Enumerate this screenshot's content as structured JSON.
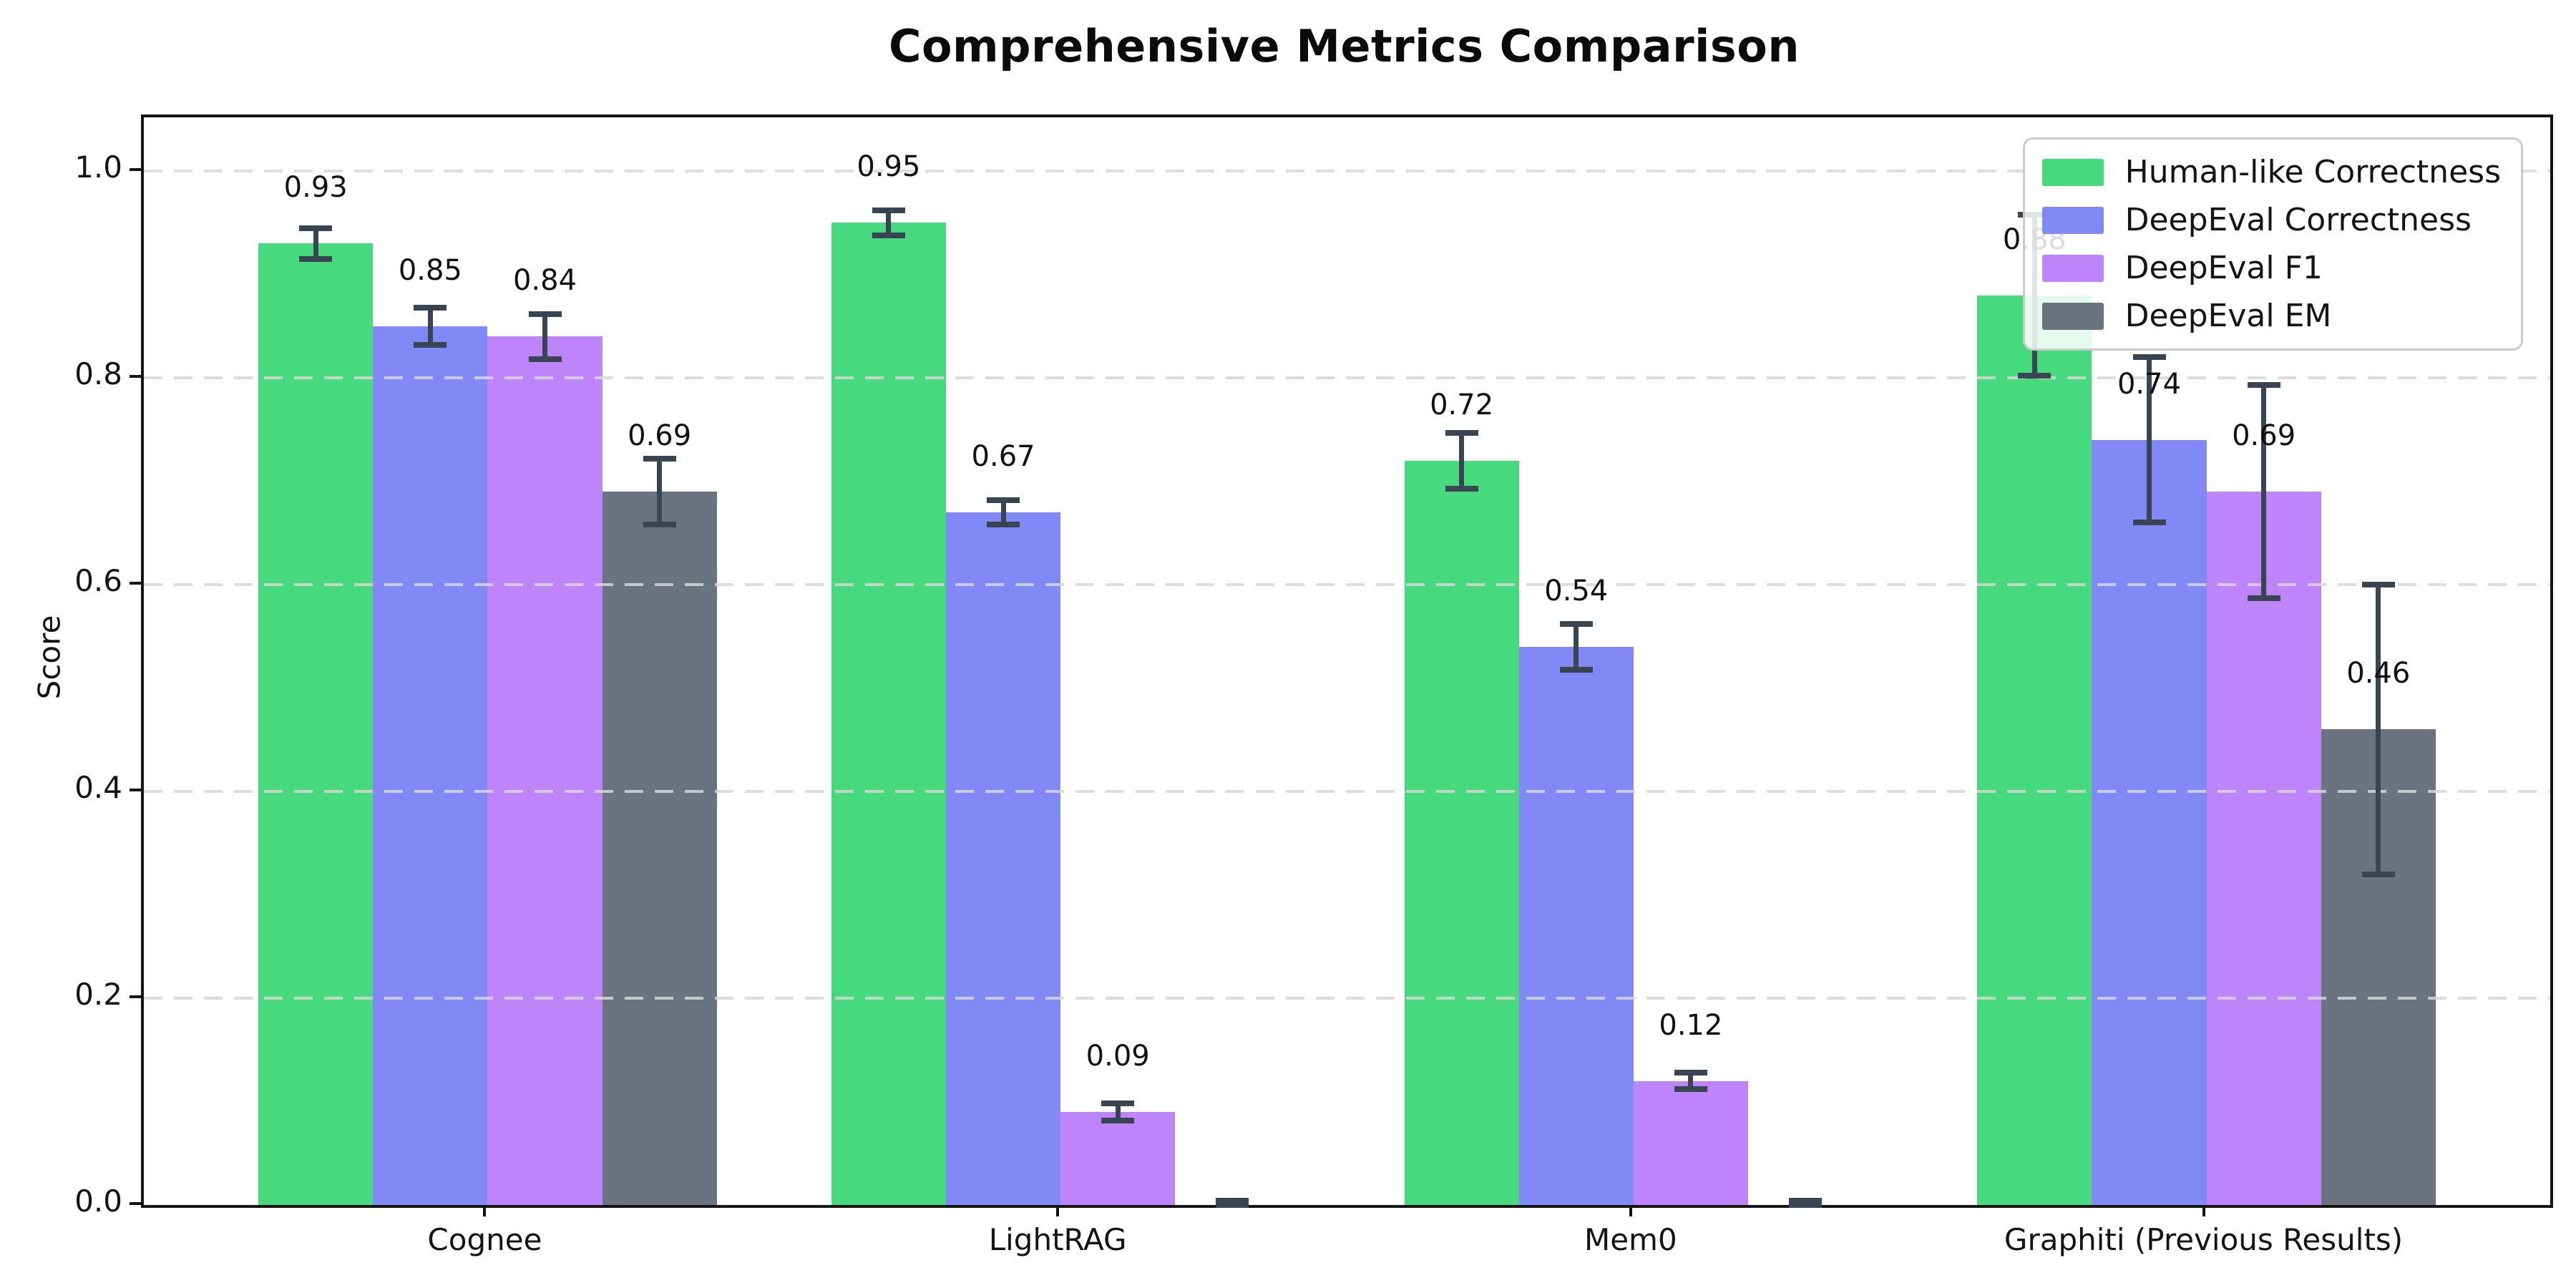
{
  "chart_data": {
    "type": "bar",
    "title": "Comprehensive Metrics Comparison",
    "ylabel": "Score",
    "categories": [
      "Cognee",
      "LightRAG",
      "Mem0",
      "Graphiti (Previous Results)"
    ],
    "series": [
      {
        "name": "Human-like Correctness",
        "color": "#47d97e",
        "values": [
          0.93,
          0.95,
          0.72,
          0.88
        ],
        "errors": [
          0.015,
          0.012,
          0.027,
          0.078
        ],
        "labels": [
          "0.93",
          "0.95",
          "0.72",
          "0.88"
        ]
      },
      {
        "name": "DeepEval Correctness",
        "color": "#8189f7",
        "values": [
          0.85,
          0.67,
          0.54,
          0.74
        ],
        "errors": [
          0.018,
          0.012,
          0.022,
          0.08
        ],
        "labels": [
          "0.85",
          "0.67",
          "0.54",
          "0.74"
        ]
      },
      {
        "name": "DeepEval F1",
        "color": "#bd85f9",
        "values": [
          0.84,
          0.09,
          0.12,
          0.69
        ],
        "errors": [
          0.022,
          0.008,
          0.008,
          0.103
        ],
        "labels": [
          "0.84",
          "0.09",
          "0.12",
          "0.69"
        ]
      },
      {
        "name": "DeepEval EM",
        "color": "#6b7280",
        "values": [
          0.69,
          0.0,
          0.0,
          0.46
        ],
        "errors": [
          0.032,
          0.004,
          0.004,
          0.14
        ],
        "labels": [
          "0.69",
          "",
          "",
          "0.46"
        ]
      }
    ],
    "yticks": [
      "0.0",
      "0.2",
      "0.4",
      "0.6",
      "0.8",
      "1.0"
    ],
    "ytick_values": [
      0.0,
      0.2,
      0.4,
      0.6,
      0.8,
      1.0
    ],
    "ylim": [
      0,
      1.052
    ],
    "grid": "dashed-horizontal",
    "legend_position": "upper right",
    "error_bar_color": "#3a4553"
  }
}
